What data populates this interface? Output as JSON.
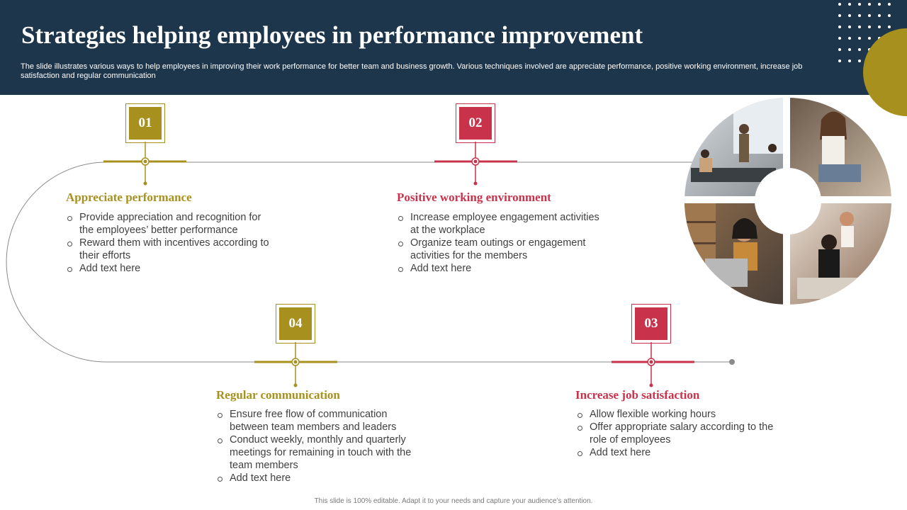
{
  "header": {
    "title": "Strategies helping employees in performance improvement",
    "subtitle": "The slide illustrates various ways to help employees in improving their work performance for better team and business growth. Various techniques involved are appreciate performance, positive working environment, increase job satisfaction and regular communication"
  },
  "colors": {
    "navy": "#1e364b",
    "gold": "#a8901f",
    "red": "#c8334b"
  },
  "steps": [
    {
      "number": "01",
      "title": "Appreciate performance",
      "bullets": [
        "Provide appreciation and recognition for the employees’ better performance",
        "Reward them with incentives according to their efforts",
        "Add text here"
      ]
    },
    {
      "number": "02",
      "title": "Positive working environment",
      "bullets": [
        "Increase employee engagement activities at the workplace",
        "Organize team outings or engagement activities for the members",
        "Add text here"
      ]
    },
    {
      "number": "03",
      "title": "Increase job satisfaction",
      "bullets": [
        "Allow flexible working hours",
        "Offer appropriate salary according to the role of employees",
        "Add text here"
      ]
    },
    {
      "number": "04",
      "title": "Regular communication",
      "bullets": [
        "Ensure free flow of communication between team members and leaders",
        "Conduct weekly, monthly and quarterly meetings for remaining in touch with the team members",
        "Add text here"
      ]
    }
  ],
  "footer": "This slide is 100% editable. Adapt it to your needs and capture your audience’s attention."
}
